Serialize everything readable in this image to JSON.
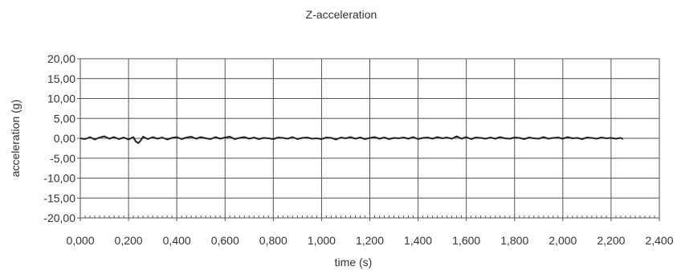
{
  "chart_data": {
    "type": "line",
    "title": "Z-acceleration",
    "xlabel": "time (s)",
    "ylabel": "acceleration (g)",
    "xlim": [
      0,
      2.4
    ],
    "ylim": [
      -20,
      20
    ],
    "x_ticks": [
      0,
      0.2,
      0.4,
      0.6,
      0.8,
      1.0,
      1.2,
      1.4,
      1.6,
      1.8,
      2.0,
      2.2,
      2.4
    ],
    "x_tick_labels": [
      "0,000",
      "0,200",
      "0,400",
      "0,600",
      "0,800",
      "1,000",
      "1,200",
      "1,400",
      "1,600",
      "1,800",
      "2,000",
      "2,200",
      "2,400"
    ],
    "y_ticks": [
      20,
      15,
      10,
      5,
      0,
      -5,
      -10,
      -15,
      -20
    ],
    "y_tick_labels": [
      "20,00",
      "15,00",
      "10,00",
      "5,00",
      "0,00",
      "-5,00",
      "-10,00",
      "-15,00",
      "-20,00"
    ],
    "grid": true,
    "legend": false,
    "colors": {
      "line": "#222222",
      "grid": "#555555",
      "text": "#333333"
    },
    "series": [
      {
        "x": [
          0.0,
          0.02,
          0.04,
          0.06,
          0.08,
          0.1,
          0.12,
          0.14,
          0.16,
          0.18,
          0.2,
          0.22,
          0.23,
          0.24,
          0.25,
          0.26,
          0.28,
          0.3,
          0.32,
          0.34,
          0.36,
          0.38,
          0.4,
          0.42,
          0.44,
          0.46,
          0.48,
          0.5,
          0.52,
          0.54,
          0.56,
          0.58,
          0.6,
          0.62,
          0.64,
          0.66,
          0.68,
          0.7,
          0.72,
          0.74,
          0.76,
          0.78,
          0.8,
          0.82,
          0.84,
          0.86,
          0.88,
          0.9,
          0.92,
          0.94,
          0.96,
          0.98,
          1.0,
          1.02,
          1.04,
          1.06,
          1.08,
          1.1,
          1.12,
          1.14,
          1.16,
          1.18,
          1.2,
          1.22,
          1.24,
          1.26,
          1.28,
          1.3,
          1.32,
          1.34,
          1.36,
          1.38,
          1.4,
          1.42,
          1.44,
          1.46,
          1.48,
          1.5,
          1.52,
          1.54,
          1.56,
          1.58,
          1.6,
          1.62,
          1.64,
          1.66,
          1.68,
          1.7,
          1.72,
          1.74,
          1.76,
          1.78,
          1.8,
          1.82,
          1.84,
          1.86,
          1.88,
          1.9,
          1.92,
          1.94,
          1.96,
          1.98,
          2.0,
          2.02,
          2.04,
          2.06,
          2.08,
          2.1,
          2.12,
          2.14,
          2.16,
          2.18,
          2.2,
          2.22,
          2.24,
          2.25
        ],
        "y": [
          0.0,
          -0.2,
          0.3,
          -0.3,
          0.2,
          0.5,
          -0.1,
          0.3,
          -0.2,
          0.2,
          -0.3,
          0.3,
          -0.8,
          -1.2,
          -0.6,
          0.4,
          -0.2,
          0.3,
          -0.1,
          0.2,
          -0.3,
          0.1,
          0.3,
          -0.2,
          0.2,
          0.4,
          -0.1,
          0.3,
          0.0,
          -0.2,
          0.3,
          -0.1,
          0.2,
          0.4,
          -0.2,
          0.1,
          0.3,
          -0.1,
          0.2,
          -0.2,
          0.1,
          0.0,
          -0.2,
          0.2,
          0.1,
          -0.1,
          0.3,
          -0.2,
          0.1,
          0.2,
          -0.1,
          0.0,
          -0.2,
          0.2,
          0.1,
          -0.3,
          0.2,
          0.0,
          0.3,
          -0.1,
          0.2,
          -0.2,
          0.1,
          0.3,
          -0.1,
          0.2,
          -0.2,
          0.1,
          0.0,
          0.2,
          -0.1,
          0.3,
          -0.2,
          0.1,
          0.2,
          -0.1,
          0.3,
          0.0,
          0.2,
          -0.1,
          0.5,
          -0.1,
          0.3,
          -0.2,
          0.2,
          0.1,
          -0.1,
          0.2,
          -0.1,
          0.3,
          0.0,
          -0.1,
          0.2,
          0.1,
          -0.2,
          0.2,
          0.0,
          -0.1,
          0.3,
          -0.1,
          0.1,
          0.2,
          -0.1,
          0.3,
          0.0,
          0.1,
          -0.2,
          0.2,
          0.1,
          -0.1,
          0.2,
          0.0,
          0.1,
          -0.1,
          0.1,
          -0.2
        ]
      }
    ]
  }
}
